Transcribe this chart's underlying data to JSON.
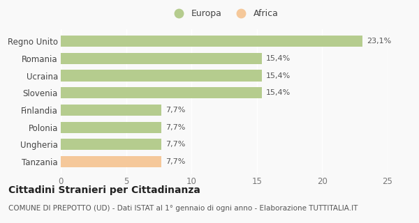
{
  "categories": [
    "Tanzania",
    "Ungheria",
    "Polonia",
    "Finlandia",
    "Slovenia",
    "Ucraina",
    "Romania",
    "Regno Unito"
  ],
  "values": [
    7.7,
    7.7,
    7.7,
    7.7,
    15.4,
    15.4,
    15.4,
    23.1
  ],
  "labels": [
    "7,7%",
    "7,7%",
    "7,7%",
    "7,7%",
    "15,4%",
    "15,4%",
    "15,4%",
    "23,1%"
  ],
  "colors": [
    "#f5c89a",
    "#b5cc8e",
    "#b5cc8e",
    "#b5cc8e",
    "#b5cc8e",
    "#b5cc8e",
    "#b5cc8e",
    "#b5cc8e"
  ],
  "europa_color": "#b5cc8e",
  "africa_color": "#f5c89a",
  "xlim": [
    0,
    25
  ],
  "xticks": [
    0,
    5,
    10,
    15,
    20,
    25
  ],
  "title": "Cittadini Stranieri per Cittadinanza",
  "subtitle": "COMUNE DI PREPOTTO (UD) - Dati ISTAT al 1° gennaio di ogni anno - Elaborazione TUTTITALIA.IT",
  "background_color": "#f9f9f9",
  "bar_height": 0.65,
  "label_fontsize": 8,
  "title_fontsize": 10,
  "subtitle_fontsize": 7.5,
  "ytick_fontsize": 8.5,
  "xtick_fontsize": 8.5
}
